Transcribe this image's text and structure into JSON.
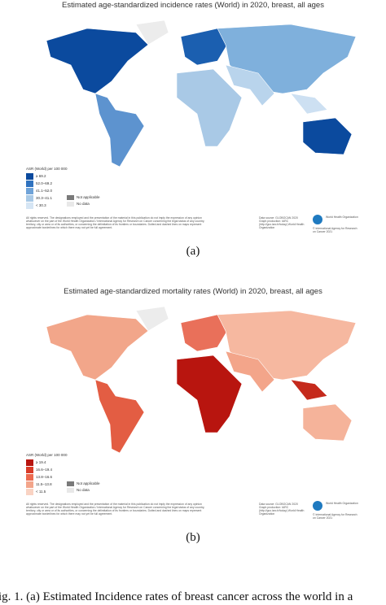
{
  "figures": [
    {
      "title": "Estimated age-standardized incidence rates (World) in 2020, breast, all ages",
      "legend": {
        "title": "ASR (World) per 100 000",
        "items": [
          {
            "label": "≥ 69.2",
            "color": "#0b4a9e"
          },
          {
            "label": "52.0–69.2",
            "color": "#2f72bf"
          },
          {
            "label": "41.1–52.0",
            "color": "#6fa3d8"
          },
          {
            "label": "30.3–41.1",
            "color": "#a9c9e6"
          },
          {
            "label": "< 30.3",
            "color": "#d5e5f4"
          }
        ],
        "not_applicable": "Not applicable",
        "no_data": "No data"
      },
      "notice": "All rights reserved. The designations employed and the presentation of the material in this publication do not imply the expression of any opinion whatsoever on the part of the World Health Organization / International Agency for Research on Cancer concerning the legal status of any country, territory, city or area or of its authorities, or concerning the delimitation of its frontiers or boundaries. Dotted and dashed lines on maps represent approximate borderlines for which there may not yet be full agreement.",
      "source": "Data source: GLOBOCAN 2020 Graph production: IARC (http://gco.iarc.fr/today) World Health Organization",
      "org": "World Health Organization",
      "copyright": "© International Agency for Research on Cancer 2021",
      "label": "(a)"
    },
    {
      "title": "Estimated age-standardized mortality rates (World) in 2020, breast, all ages",
      "legend": {
        "title": "ASR (World) per 100 000",
        "items": [
          {
            "label": "≥ 19.4",
            "color": "#b8150f"
          },
          {
            "label": "16.6–19.4",
            "color": "#d93b28"
          },
          {
            "label": "13.8–16.6",
            "color": "#ec6a4f"
          },
          {
            "label": "11.5–13.8",
            "color": "#f3a58a"
          },
          {
            "label": "< 11.5",
            "color": "#f9d3c3"
          }
        ],
        "not_applicable": "Not applicable",
        "no_data": "No data"
      },
      "notice": "All rights reserved. The designations employed and the presentation of the material in this publication do not imply the expression of any opinion whatsoever on the part of the World Health Organization / International Agency for Research on Cancer concerning the legal status of any country, territory, city or area or of its authorities, or concerning the delimitation of its frontiers or boundaries. Dotted and dashed lines on maps represent approximate borderlines for which there may not yet be full agreement.",
      "source": "Data source: GLOBOCAN 2020 Graph production: IARC (http://gco.iarc.fr/today) World Health Organization",
      "org": "World Health Organization",
      "copyright": "© International Agency for Research on Cancer 2021",
      "label": "(b)"
    }
  ],
  "caption": "ig. 1. (a) Estimated Incidence rates of breast cancer across the world in a"
}
